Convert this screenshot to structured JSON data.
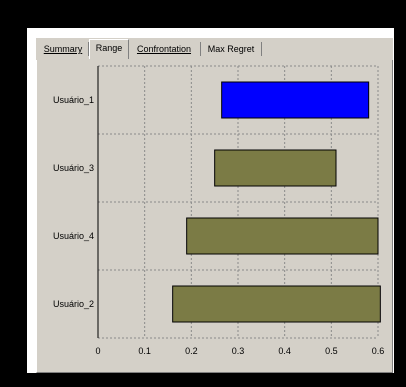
{
  "tabs": [
    {
      "label": "Summary",
      "active": false
    },
    {
      "label": "Range",
      "active": true
    },
    {
      "label": "Confrontation",
      "active": false
    },
    {
      "label": "Max Regret",
      "active": false
    }
  ],
  "colors": {
    "panel_bg": "#d4d0c8",
    "highlight_bar": "#0000ff",
    "bar": "#7b7b45",
    "grid": "#8a8a8a"
  },
  "chart_data": {
    "type": "bar",
    "orientation": "horizontal",
    "floating": true,
    "categories": [
      "Usuário_1",
      "Usuário_3",
      "Usuário_4",
      "Usuário_2"
    ],
    "ranges": [
      {
        "category": "Usuário_1",
        "min": 0.265,
        "max": 0.58,
        "highlight": true
      },
      {
        "category": "Usuário_3",
        "min": 0.25,
        "max": 0.51,
        "highlight": false
      },
      {
        "category": "Usuário_4",
        "min": 0.19,
        "max": 0.6,
        "highlight": false
      },
      {
        "category": "Usuário_2",
        "min": 0.16,
        "max": 0.605,
        "highlight": false
      }
    ],
    "xlim": [
      0,
      0.6
    ],
    "xticks": [
      0,
      0.1,
      0.2,
      0.3,
      0.4,
      0.5,
      0.6
    ],
    "xtick_labels": [
      "0",
      "0.1",
      "0.2",
      "0.3",
      "0.4",
      "0.5",
      "0.6"
    ],
    "grid": true,
    "title": "",
    "xlabel": "",
    "ylabel": ""
  }
}
